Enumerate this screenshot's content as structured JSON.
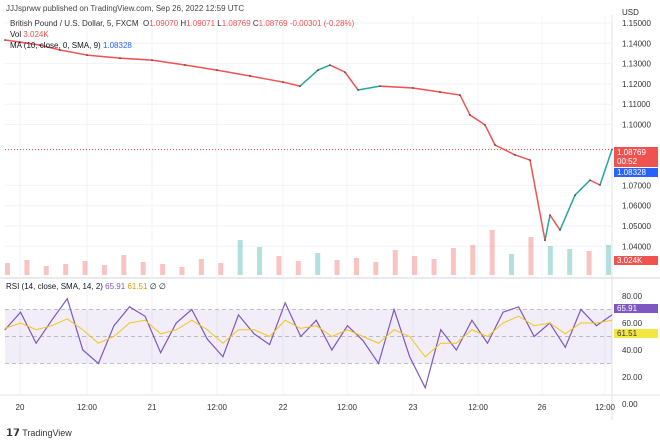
{
  "header": {
    "published": "JJJsprww published on TradingView.com, Sep 26, 2022 12:59 UTC",
    "symbol": "British Pound / U.S. Dollar, 5, FXCM",
    "o_label": "O",
    "o": "1.09070",
    "h_label": "H",
    "h": "1.09071",
    "l_label": "L",
    "l": "1.08769",
    "c_label": "C",
    "c": "1.08769",
    "change": "-0.00301 (-0.28%)",
    "vol_label": "Vol",
    "vol": "3.024K",
    "ma_label": "MA (10, close, 0, SMA, 9)",
    "ma": "1.08328",
    "rsi_label": "RSI (14, close, SMA, 14, 2)",
    "rsi": "65.91",
    "rsi_sma": "61.51",
    "rsi_extra": "∅ ∅"
  },
  "badges": {
    "price": "1.08769",
    "countdown": "00:52",
    "ma": "1.08328",
    "volume": "3.024K",
    "rsi": "65.91",
    "rsi_sma": "61.51"
  },
  "logo": "TradingView",
  "colors": {
    "up": "#26a69a",
    "down": "#ef5350",
    "rsi": "#7e57c2",
    "rsi_sma": "#f5c518",
    "ma": "#2962ff"
  },
  "chart_data": [
    {
      "type": "line",
      "title": "British Pound / U.S. Dollar, 5, FXCM",
      "yaxis_unit": "USD",
      "ylim": [
        1.035,
        1.155
      ],
      "yticks": [
        "1.15000",
        "1.14000",
        "1.13000",
        "1.12000",
        "1.11000",
        "1.10000",
        "1.07000",
        "1.06000",
        "1.05000",
        "1.04000"
      ],
      "xticks": [
        "20",
        "12:00",
        "21",
        "12:00",
        "22",
        "12:00",
        "23",
        "12:00",
        "26",
        "12:00"
      ],
      "x": [
        "Sep 19 21:15",
        "Sep 20 00:00",
        "Sep 20 03:40",
        "Sep 20 07:20",
        "Sep 20 12:00",
        "Sep 20 18:00",
        "Sep 21 00:00",
        "Sep 21 06:00",
        "Sep 21 12:00",
        "Sep 21 18:00",
        "Sep 22 00:00",
        "Sep 22 03:00",
        "Sep 22 06:30",
        "Sep 22 08:30",
        "Sep 22 11:30",
        "Sep 22 14:00",
        "Sep 22 18:00",
        "Sep 23 00:00",
        "Sep 23 05:00",
        "Sep 23 08:30",
        "Sep 23 10:30",
        "Sep 23 13:00",
        "Sep 23 15:00",
        "Sep 23 19:00",
        "Sep 23 21:30",
        "Sep 26 00:30",
        "Sep 26 01:20",
        "Sep 26 03:20",
        "Sep 26 06:00",
        "Sep 26 08:50",
        "Sep 26 10:40",
        "Sep 26 12:55"
      ],
      "series": [
        {
          "values": [
            1.1416,
            1.1406,
            1.1391,
            1.1367,
            1.1342,
            1.1327,
            1.1317,
            1.1293,
            1.1268,
            1.1239,
            1.1209,
            1.1189,
            1.1268,
            1.1293,
            1.1258,
            1.117,
            1.1189,
            1.118,
            1.116,
            1.1145,
            1.1047,
            1.0998,
            1.0899,
            1.085,
            1.0825,
            1.043,
            1.0554,
            1.048,
            1.0652,
            1.0726,
            1.0702,
            1.0877
          ]
        }
      ],
      "volume_k": [
        1.2,
        1.5,
        0.9,
        1.1,
        1.4,
        1.0,
        2.0,
        1.3,
        1.1,
        0.8,
        1.6,
        1.2,
        3.5,
        2.8,
        1.9,
        1.4,
        2.2,
        1.5,
        1.7,
        1.3,
        2.5,
        1.9,
        1.6,
        2.7,
        3.0,
        4.5,
        2.1,
        3.8,
        2.9,
        2.6,
        2.4,
        3.0
      ]
    },
    {
      "type": "line",
      "title": "RSI (14, close, SMA, 14, 2)",
      "ylim": [
        0,
        90
      ],
      "yticks": [
        "80.00",
        "60.00",
        "40.00",
        "20.00",
        "0.00"
      ],
      "bands": [
        30,
        70
      ],
      "series": [
        {
          "name": "RSI",
          "values": [
            55,
            68,
            45,
            62,
            78,
            40,
            30,
            58,
            72,
            65,
            38,
            60,
            70,
            48,
            35,
            66,
            52,
            44,
            75,
            50,
            62,
            40,
            58,
            47,
            30,
            70,
            35,
            12,
            55,
            40,
            62,
            45,
            68,
            72,
            50,
            60,
            42,
            70,
            58,
            66
          ]
        },
        {
          "name": "SMA",
          "values": [
            56,
            60,
            55,
            58,
            63,
            55,
            45,
            50,
            60,
            62,
            52,
            55,
            62,
            55,
            45,
            55,
            55,
            50,
            62,
            56,
            58,
            50,
            55,
            50,
            45,
            55,
            50,
            35,
            45,
            45,
            55,
            50,
            60,
            65,
            58,
            60,
            52,
            60,
            60,
            62
          ]
        }
      ]
    }
  ]
}
